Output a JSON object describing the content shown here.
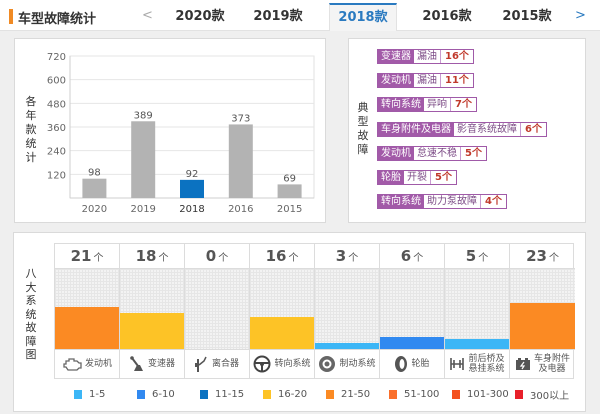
{
  "header": {
    "title": "车型故障统计",
    "accent_color": "#f08a24",
    "prev_arrow": "<",
    "next_arrow": ">",
    "tabs": [
      {
        "label": "2020款",
        "active": false
      },
      {
        "label": "2019款",
        "active": false
      },
      {
        "label": "2018款",
        "active": true
      },
      {
        "label": "2016款",
        "active": false
      },
      {
        "label": "2015款",
        "active": false
      }
    ]
  },
  "chart_data": {
    "type": "bar",
    "title": "",
    "ylabel": "各年款统计",
    "xlabel": "",
    "categories": [
      "2020",
      "2019",
      "2018",
      "2016",
      "2015"
    ],
    "values": [
      98,
      389,
      92,
      373,
      69
    ],
    "highlight": "2018",
    "ylim": [
      0,
      720
    ],
    "yticks": [
      120,
      240,
      360,
      480,
      600,
      720
    ],
    "grid": true,
    "colors": {
      "default": "#b3b3b3",
      "highlight": "#0b72c1"
    }
  },
  "typical_faults": {
    "label": "典型故障",
    "items": [
      {
        "system": "变速器",
        "issue": "漏油",
        "count": "16个"
      },
      {
        "system": "发动机",
        "issue": "漏油",
        "count": "11个"
      },
      {
        "system": "转向系统",
        "issue": "异响",
        "count": "7个"
      },
      {
        "system": "车身附件及电器",
        "issue": "影音系统故障",
        "count": "6个"
      },
      {
        "system": "发动机",
        "issue": "怠速不稳",
        "count": "5个"
      },
      {
        "system": "轮胎",
        "issue": "开裂",
        "count": "5个"
      },
      {
        "system": "转向系统",
        "issue": "助力泵故障",
        "count": "4个"
      }
    ]
  },
  "eight_systems": {
    "label": "八大系统故障图",
    "unit": "个",
    "max_scale": 40,
    "systems": [
      {
        "name": "发动机",
        "count": 21,
        "icon": "engine-icon",
        "color": "#fb8a23"
      },
      {
        "name": "变速器",
        "count": 18,
        "icon": "gear-shifter-icon",
        "color": "#fdc326"
      },
      {
        "name": "离合器",
        "count": 0,
        "icon": "clutch-pedal-icon",
        "color": "#f3f3f3"
      },
      {
        "name": "转向系统",
        "count": 16,
        "icon": "steering-wheel-icon",
        "color": "#fdc326"
      },
      {
        "name": "制动系统",
        "count": 3,
        "icon": "brake-disc-icon",
        "color": "#3cb6f6"
      },
      {
        "name": "轮胎",
        "count": 6,
        "icon": "tire-icon",
        "color": "#3189f0"
      },
      {
        "name": "前后桥及悬挂系统",
        "count": 5,
        "icon": "suspension-icon",
        "color": "#3cb6f6",
        "name_lines": [
          "前后桥及",
          "悬挂系统"
        ]
      },
      {
        "name": "车身附件及电器",
        "count": 23,
        "icon": "battery-icon",
        "color": "#fb8a23",
        "name_lines": [
          "车身附件",
          "及电器"
        ]
      }
    ],
    "legend": [
      {
        "label": "1-5",
        "color": "#3cb6f6"
      },
      {
        "label": "6-10",
        "color": "#3189f0"
      },
      {
        "label": "11-15",
        "color": "#0b72c1"
      },
      {
        "label": "16-20",
        "color": "#fdc326"
      },
      {
        "label": "21-50",
        "color": "#fb8a23"
      },
      {
        "label": "51-100",
        "color": "#fa6f2b"
      },
      {
        "label": "101-300",
        "color": "#f4511e"
      },
      {
        "label": "300以上",
        "color": "#e8202a"
      }
    ]
  }
}
